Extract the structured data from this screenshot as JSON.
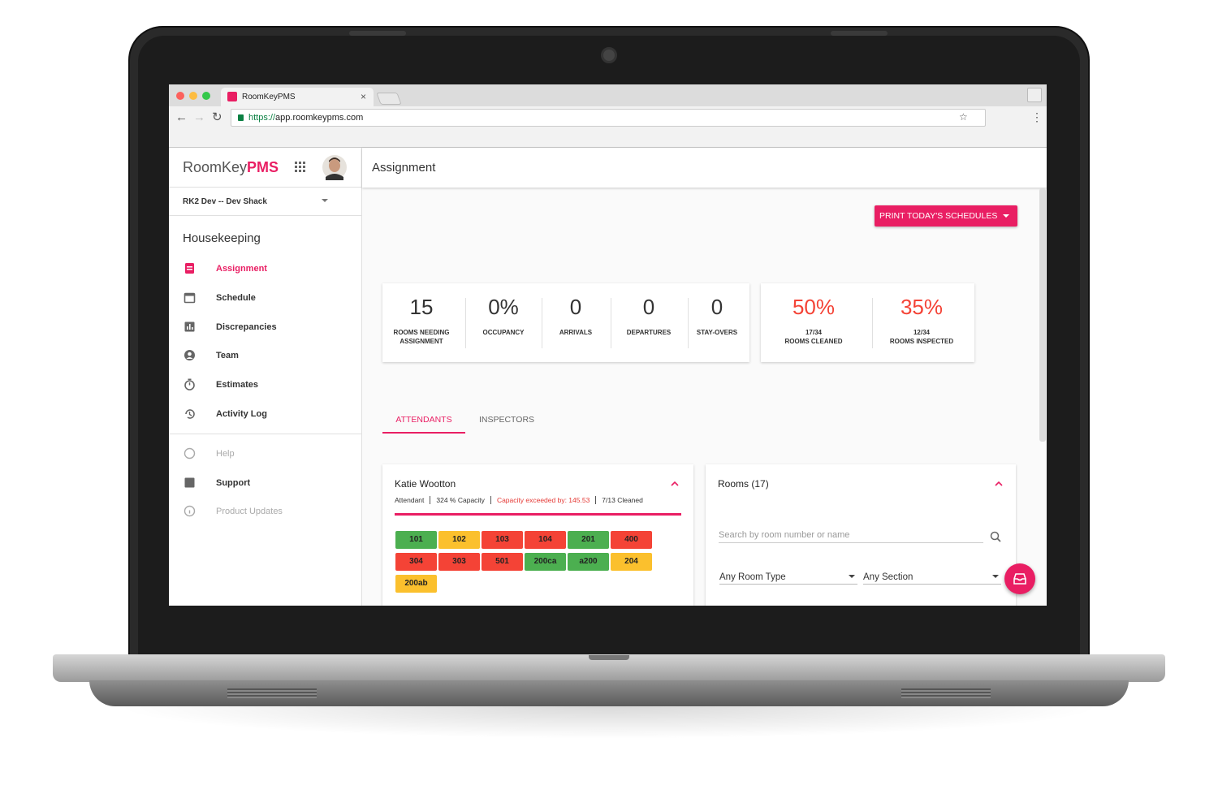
{
  "browser": {
    "tab_title": "RoomKeyPMS",
    "url_scheme": "https://",
    "url_host": "app.roomkeypms.com"
  },
  "sidebar": {
    "logo_main": "RoomKey",
    "logo_accent": "PMS",
    "property": "RK2 Dev -- Dev Shack",
    "section": "Housekeeping",
    "nav": [
      {
        "label": "Assignment",
        "active": true
      },
      {
        "label": "Schedule",
        "active": false
      },
      {
        "label": "Discrepancies",
        "active": false
      },
      {
        "label": "Team",
        "active": false
      },
      {
        "label": "Estimates",
        "active": false
      },
      {
        "label": "Activity Log",
        "active": false
      }
    ],
    "secondary": [
      {
        "label": "Help",
        "muted": true
      },
      {
        "label": "Support",
        "muted": false
      },
      {
        "label": "Product Updates",
        "muted": true
      }
    ]
  },
  "header": {
    "title": "Assignment"
  },
  "print_button": "PRINT TODAY'S SCHEDULES",
  "stats": [
    {
      "value": "15",
      "label": "ROOMS NEEDING ASSIGNMENT"
    },
    {
      "value": "0%",
      "label": "OCCUPANCY"
    },
    {
      "value": "0",
      "label": "ARRIVALS"
    },
    {
      "value": "0",
      "label": "DEPARTURES"
    },
    {
      "value": "0",
      "label": "STAY-OVERS"
    }
  ],
  "progress": [
    {
      "value": "50%",
      "count": "17/34",
      "label": "ROOMS CLEANED"
    },
    {
      "value": "35%",
      "count": "12/34",
      "label": "ROOMS INSPECTED"
    }
  ],
  "tabs": [
    {
      "label": "ATTENDANTS",
      "active": true
    },
    {
      "label": "INSPECTORS",
      "active": false
    }
  ],
  "attendant": {
    "name": "Katie Wootton",
    "role": "Attendant",
    "capacity": "324 % Capacity",
    "warning": "Capacity exceeded by: 145.53",
    "cleaned": "7/13 Cleaned",
    "rooms": [
      {
        "label": "101",
        "color": "#4caf50"
      },
      {
        "label": "102",
        "color": "#fbc02d"
      },
      {
        "label": "103",
        "color": "#f44336"
      },
      {
        "label": "104",
        "color": "#f44336"
      },
      {
        "label": "201",
        "color": "#4caf50"
      },
      {
        "label": "400",
        "color": "#f44336"
      },
      {
        "label": "304",
        "color": "#f44336"
      },
      {
        "label": "303",
        "color": "#f44336"
      },
      {
        "label": "501",
        "color": "#f44336"
      },
      {
        "label": "200ca",
        "color": "#4caf50"
      },
      {
        "label": "a200",
        "color": "#4caf50"
      },
      {
        "label": "204",
        "color": "#fbc02d"
      },
      {
        "label": "200ab",
        "color": "#fbc02d"
      }
    ]
  },
  "rooms_panel": {
    "title": "Rooms (17)",
    "search_placeholder": "Search by room number or name",
    "room_type": "Any Room Type",
    "section": "Any Section"
  }
}
